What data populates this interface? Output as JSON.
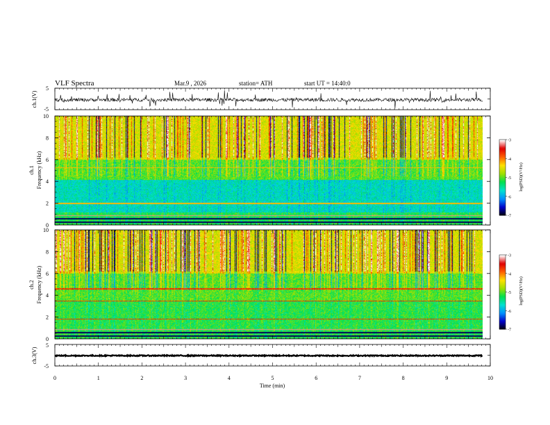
{
  "header": {
    "title": "VLF Spectra",
    "date": "Mar.9 , 2026",
    "station": "station= ATH",
    "start": "start UT = 14:40:0"
  },
  "chart_data": [
    {
      "type": "line",
      "ylabel": "ch.1(V)",
      "ylim": [
        -5,
        5
      ],
      "y_ticks": [
        "5",
        "-5"
      ],
      "xlim": [
        0,
        10
      ],
      "baseline": -0.4,
      "series_note_color": "#000000"
    },
    {
      "type": "heatmap",
      "ylabel": "Frequency (kHz)",
      "channel_label": "ch.1",
      "ylim": [
        0,
        10
      ],
      "y_ticks": [
        "0",
        "2",
        "4",
        "6",
        "8",
        "10"
      ],
      "xlim": [
        0,
        10
      ],
      "colorbar": {
        "label": "log(PSD)(V²/Hz)",
        "range": [
          -7,
          -3
        ],
        "ticks": [
          "-3",
          "-4",
          "-5",
          "-6",
          "-7"
        ],
        "colors": [
          "#000000",
          "#0000c8",
          "#0090ff",
          "#00e0d0",
          "#00e050",
          "#a0e000",
          "#ffe000",
          "#ff6000",
          "#e00000",
          "#ffffff"
        ]
      }
    },
    {
      "type": "heatmap",
      "ylabel": "Frequency (kHz)",
      "channel_label": "ch.2",
      "ylim": [
        0,
        10
      ],
      "y_ticks": [
        "0",
        "2",
        "4",
        "6",
        "8",
        "10"
      ],
      "xlim": [
        0,
        10
      ],
      "colorbar": {
        "label": "log(PSD)(V²/Hz)",
        "range": [
          -7,
          -3
        ],
        "ticks": [
          "-3",
          "-4",
          "-5",
          "-6",
          "-7"
        ]
      }
    },
    {
      "type": "line",
      "ylabel": "ch.3(V)",
      "ylim": [
        -5,
        5
      ],
      "y_ticks": [
        "5",
        "-5"
      ],
      "xlim": [
        0,
        10
      ],
      "baseline": -0.2
    }
  ],
  "x_axis": {
    "label": "Time (min)",
    "ticks": [
      "0",
      "1",
      "2",
      "3",
      "4",
      "5",
      "6",
      "7",
      "8",
      "9",
      "10"
    ],
    "data_end": 9.82
  }
}
